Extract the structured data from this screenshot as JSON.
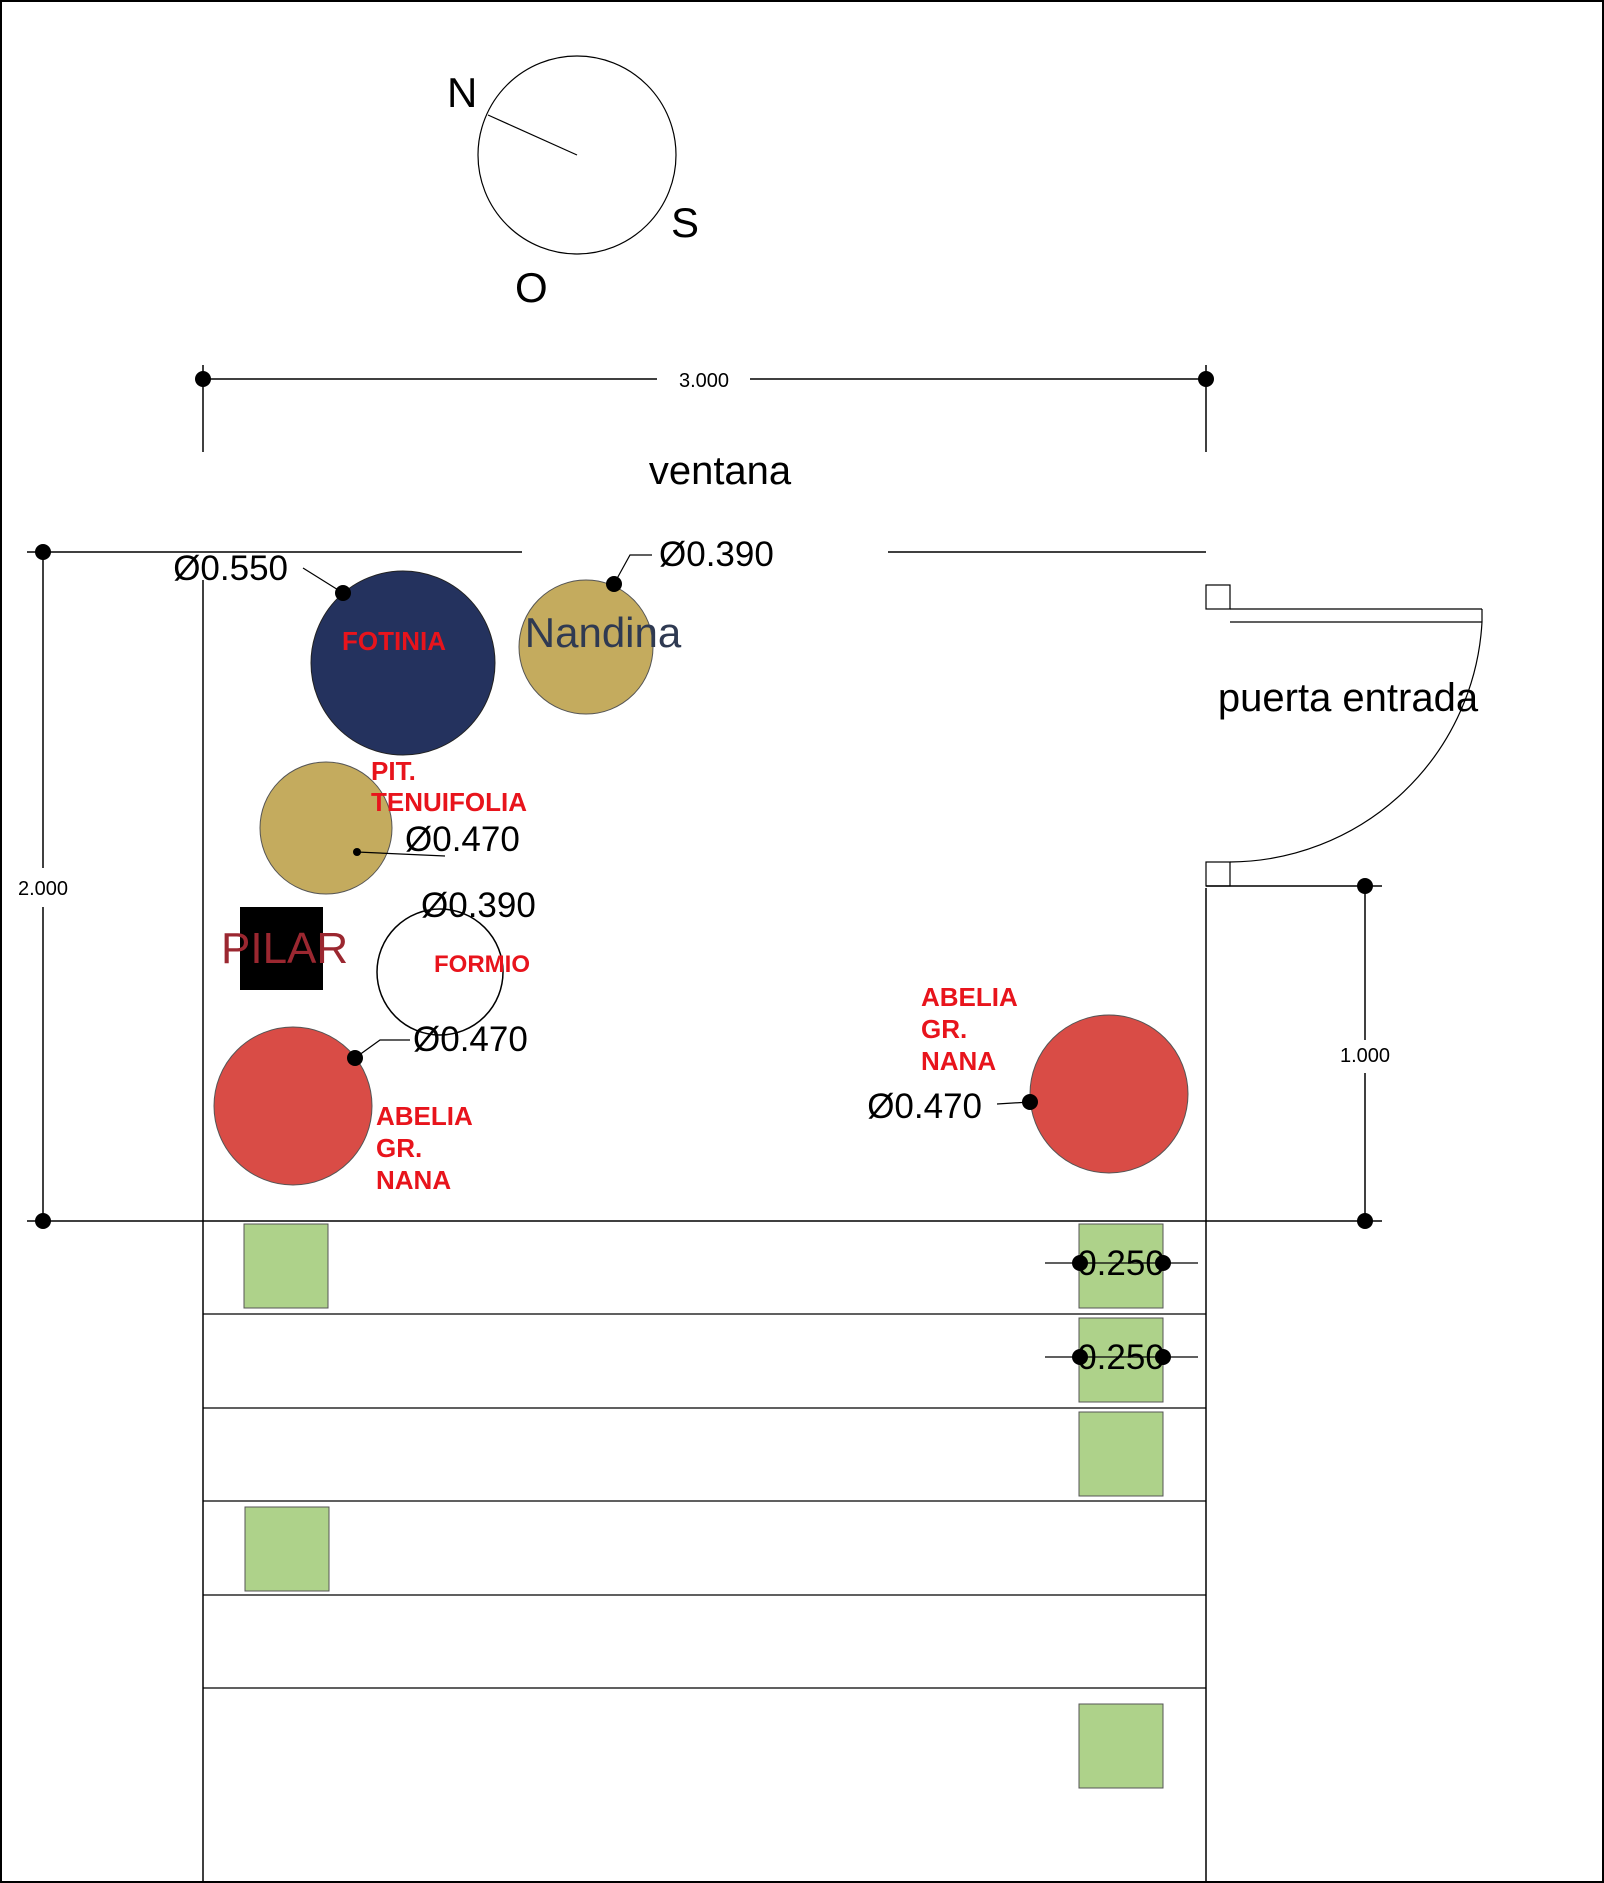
{
  "compass": {
    "north": "N",
    "south": "S",
    "west": "O"
  },
  "dimensions": {
    "width": "3.000",
    "height": "2.000",
    "door_side": "1.000",
    "tile_a": "0.250",
    "tile_b": "0.250"
  },
  "labels": {
    "window": "ventana",
    "door": "puerta entrada",
    "pillar": "PILAR"
  },
  "plants": {
    "fotinia": {
      "name": "FOTINIA",
      "diameter": "Ø0.550",
      "color": "#24325e"
    },
    "nandina": {
      "name": "Nandina",
      "diameter": "Ø0.390",
      "color": "#c4ab5e"
    },
    "pittosporum": {
      "name_l1": "PIT.",
      "name_l2": "TENUIFOLIA",
      "diameter": "Ø0.470",
      "color": "#c4ab5e"
    },
    "formio": {
      "name": "FORMIO",
      "diameter": "Ø0.390"
    },
    "abelia_left": {
      "name_l1": "ABELIA",
      "name_l2": "GR.",
      "name_l3": "NANA",
      "diameter": "Ø0.470",
      "color": "#d94c46"
    },
    "abelia_right": {
      "name_l1": "ABELIA",
      "name_l2": "GR.",
      "name_l3": "NANA",
      "diameter": "Ø0.470",
      "color": "#d94c46"
    }
  },
  "colors": {
    "tile": "#aed28a",
    "pillar": "#000000",
    "pillar_text": "#9b2730",
    "plant_label": "#e8141c"
  }
}
